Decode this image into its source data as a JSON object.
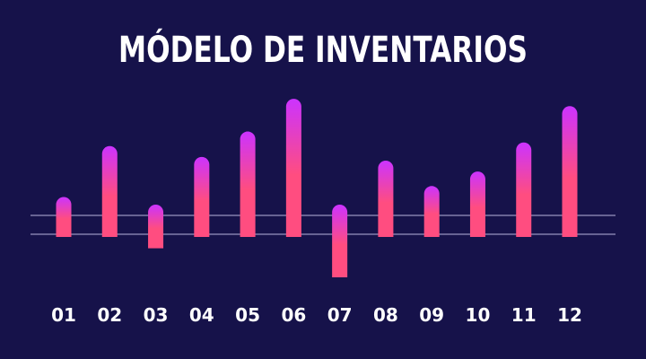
{
  "chart_data": {
    "type": "bar",
    "title": "MÓDELO DE INVENTARIOS",
    "categories": [
      "01",
      "02",
      "03",
      "04",
      "05",
      "06",
      "07",
      "08",
      "09",
      "10",
      "11",
      "12"
    ],
    "values": [
      5.5,
      12.5,
      -6.0,
      11.0,
      14.5,
      19.0,
      -10.0,
      10.5,
      7.0,
      9.0,
      13.0,
      18.0
    ],
    "gradient_colors": {
      "top": "#cc33ff",
      "bottom": "#ff4d80"
    },
    "background": "#16124a",
    "reference_line_color": "#b8b4dc",
    "grid": false,
    "legend": "none"
  }
}
